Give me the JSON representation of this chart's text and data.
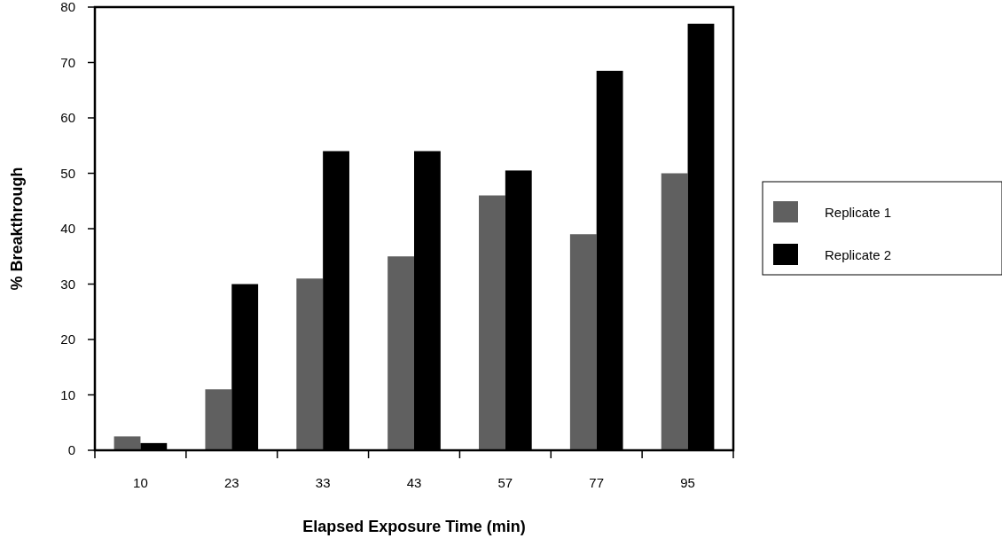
{
  "chart_data": {
    "type": "bar",
    "xlabel": "Elapsed Exposure Time (min)",
    "ylabel": "% Breakthrough",
    "categories": [
      "10",
      "23",
      "33",
      "43",
      "57",
      "77",
      "95"
    ],
    "series": [
      {
        "name": "Replicate 1",
        "color": "#606060",
        "values": [
          2.5,
          11,
          31,
          35,
          46,
          39,
          50
        ]
      },
      {
        "name": "Replicate 2",
        "color": "#000000",
        "values": [
          1.3,
          30,
          54,
          54,
          50.5,
          68.5,
          77
        ]
      }
    ],
    "ylim": [
      0,
      80
    ],
    "yticks": [
      0,
      10,
      20,
      30,
      40,
      50,
      60,
      70,
      80
    ],
    "grid": false,
    "legend": "right"
  }
}
